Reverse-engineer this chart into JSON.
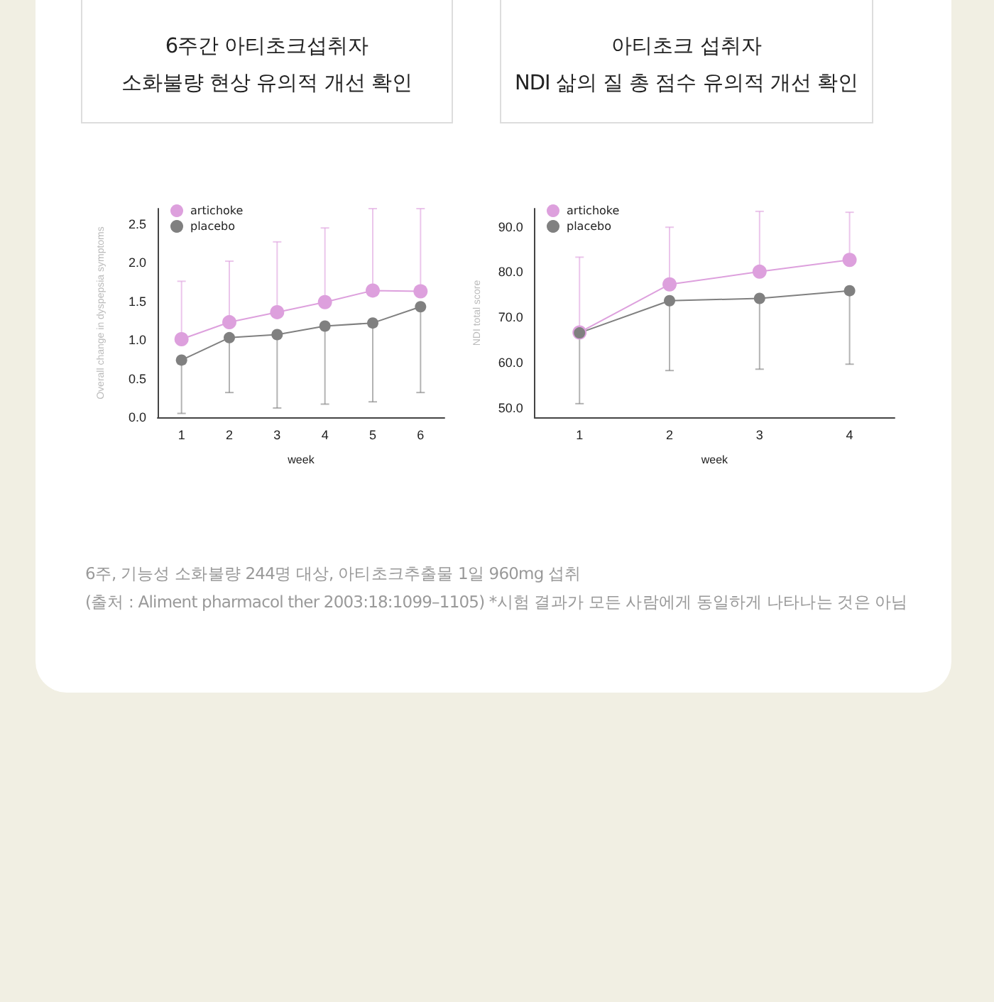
{
  "chart_data": [
    {
      "type": "line",
      "title": "6주간 아티초크섭취자\n소화불량 현상 유의적 개선 확인",
      "xlabel": "week",
      "ylabel": "Overall change in dyspepsia symptoms",
      "categories": [
        "1",
        "2",
        "3",
        "4",
        "5",
        "6"
      ],
      "series": [
        {
          "name": "artichoke",
          "color": "#dda0dd",
          "values": [
            1.01,
            1.23,
            1.36,
            1.49,
            1.64,
            1.63
          ],
          "errors": [
            [
              1.01,
              1.76
            ],
            [
              1.23,
              2.02
            ],
            [
              1.36,
              2.27
            ],
            [
              1.49,
              2.45
            ],
            [
              1.64,
              2.7
            ],
            [
              1.63,
              2.7
            ]
          ]
        },
        {
          "name": "placebo",
          "color": "#808080",
          "values": [
            0.74,
            1.03,
            1.07,
            1.18,
            1.22,
            1.43
          ],
          "errors": [
            [
              0.05,
              0.74
            ],
            [
              0.32,
              1.03
            ],
            [
              0.12,
              1.07
            ],
            [
              0.17,
              1.18
            ],
            [
              0.2,
              1.22
            ],
            [
              0.32,
              1.43
            ]
          ]
        }
      ],
      "ylim": [
        0,
        2.7
      ],
      "yticks": [
        {
          "value": 0,
          "label": "0.0"
        },
        {
          "value": 0.5,
          "label": "0.5"
        },
        {
          "value": 1,
          "label": "1.0"
        },
        {
          "value": 1.5,
          "label": "1.5"
        },
        {
          "value": 2,
          "label": "2.0"
        },
        {
          "value": 2.5,
          "label": "2.5"
        }
      ],
      "grid": false,
      "legend": "top left",
      "marker": "circle",
      "line_style": "solid"
    },
    {
      "type": "line",
      "title": "아티초크 섭취자\nNDI 삶의 질 총 점수 유의적 개선 확인",
      "xlabel": "week",
      "ylabel": "NDI total score",
      "categories": [
        "1",
        "2",
        "3",
        "4"
      ],
      "series": [
        {
          "name": "artichoke",
          "color": "#dda0dd",
          "values": [
            66.7,
            77.3,
            80.1,
            82.7
          ],
          "errors": [
            [
              66.7,
              83.3
            ],
            [
              77.3,
              89.9
            ],
            [
              80.1,
              93.4
            ],
            [
              82.7,
              93.2
            ]
          ]
        },
        {
          "name": "placebo",
          "color": "#808080",
          "values": [
            66.6,
            73.7,
            74.2,
            75.9
          ],
          "errors": [
            [
              51.0,
              66.6
            ],
            [
              58.3,
              73.7
            ],
            [
              58.6,
              74.2
            ],
            [
              59.7,
              75.9
            ]
          ]
        }
      ],
      "ylim": [
        48,
        94
      ],
      "yticks": [
        {
          "value": 50,
          "label": "50.0"
        },
        {
          "value": 60,
          "label": "60.0"
        },
        {
          "value": 70,
          "label": "70.0"
        },
        {
          "value": 80,
          "label": "80.0"
        },
        {
          "value": 90,
          "label": "90.0"
        }
      ],
      "grid": false,
      "legend": "top left",
      "marker": "circle",
      "line_style": "solid",
      "annotations": [
        "6주, 기능성 소화불량 244명 대상, 아티초크추출물 1일 960mg 섭취",
        "(출처 : Aliment pharmacol ther 2003:18:1099–1105) *시험 결과가 모든 사람에게 동일하게 나타나는 것은 아님"
      ]
    }
  ]
}
